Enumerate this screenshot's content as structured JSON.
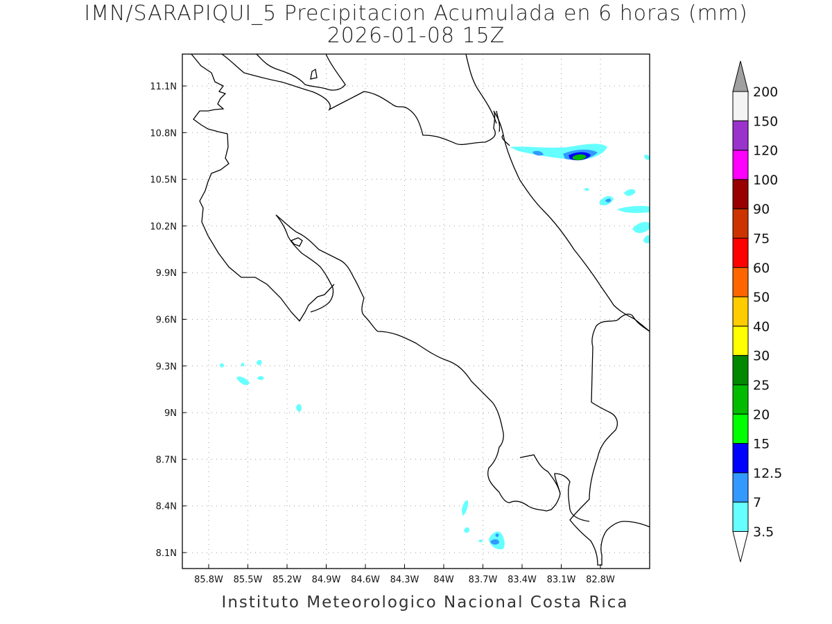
{
  "title": {
    "line1": "IMN/SARAPIQUI_5 Precipitacion Acumulada en 6 horas (mm)",
    "line2": "2026-01-08 15Z"
  },
  "footer": "Instituto Meteorologico Nacional Costa Rica",
  "map": {
    "lon_ticks": [
      "85.8W",
      "85.5W",
      "85.2W",
      "84.9W",
      "84.6W",
      "84.3W",
      "84W",
      "83.7W",
      "83.4W",
      "83.1W",
      "82.8W"
    ],
    "lat_ticks": [
      "11.1N",
      "10.8N",
      "10.5N",
      "10.2N",
      "9.9N",
      "9.6N",
      "9.3N",
      "9N",
      "8.7N",
      "8.4N",
      "8.1N"
    ],
    "grid": "dotted"
  },
  "colorbar": {
    "labels": [
      "200",
      "150",
      "120",
      "100",
      "90",
      "75",
      "60",
      "50",
      "40",
      "30",
      "25",
      "20",
      "15",
      "12.5",
      "7",
      "3.5"
    ],
    "colors": [
      "#a0a0a0",
      "#f4f4f4",
      "#9933cc",
      "#ff00ff",
      "#990000",
      "#cc3300",
      "#ff0000",
      "#ff6600",
      "#ffcc00",
      "#ffff00",
      "#008800",
      "#00bb00",
      "#00ff00",
      "#0000ff",
      "#3399ff",
      "#66ffff",
      "#ffffff"
    ]
  },
  "precip_colors": {
    "light": "#66ffff",
    "medium": "#3399ff",
    "heavy": "#0000ff",
    "peak": "#00bb00"
  }
}
